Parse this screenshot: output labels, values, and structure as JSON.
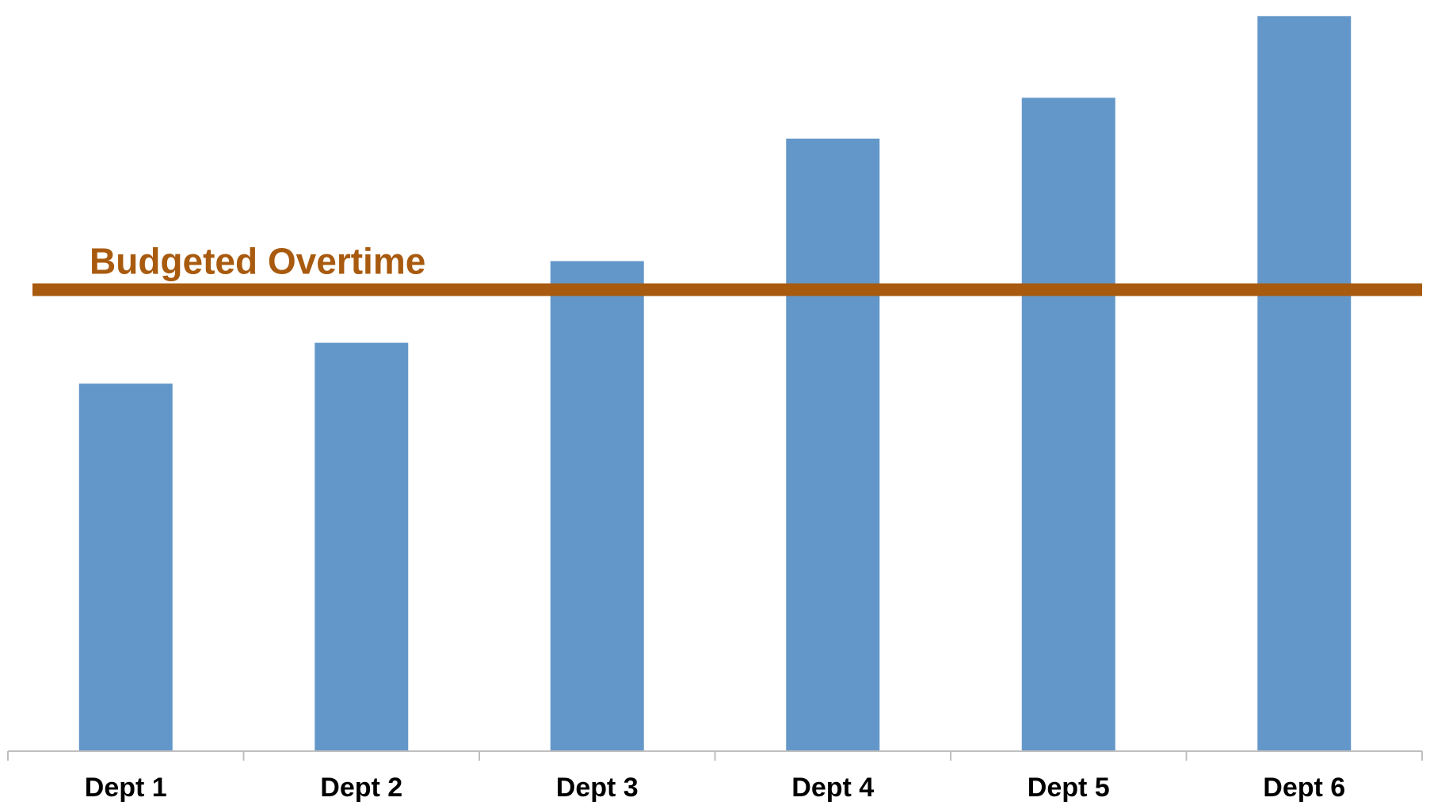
{
  "chart_data": {
    "type": "bar",
    "categories": [
      "Dept 1",
      "Dept 2",
      "Dept 3",
      "Dept 4",
      "Dept 5",
      "Dept 6"
    ],
    "values": [
      45,
      50,
      60,
      75,
      80,
      90
    ],
    "ylim": [
      0,
      91
    ],
    "grid": false,
    "legend": "none",
    "reference_line": {
      "label": "Budgeted Overtime",
      "value": 56.5
    },
    "colors": {
      "bar": "#6497C9",
      "reference_line": "#A85A0E",
      "axis": "#BFBFBF"
    }
  }
}
